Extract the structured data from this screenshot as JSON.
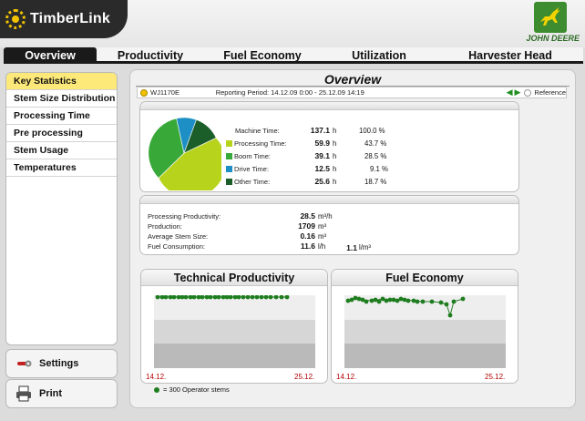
{
  "app": {
    "logo_text": "TimberLink",
    "brand": "JOHN DEERE"
  },
  "tabs": [
    "Overview",
    "Productivity",
    "Fuel Economy",
    "Utilization",
    "Harvester Head"
  ],
  "sidebar": {
    "items": [
      "Key Statistics",
      "Stem Size Distribution",
      "Processing Time",
      "Pre processing",
      "Stem Usage",
      "Temperatures"
    ],
    "settings_label": "Settings",
    "print_label": "Print"
  },
  "main": {
    "title": "Overview",
    "machine_id": "WJ1170E",
    "reporting_period": "Reporting Period: 14.12.09 0:00 - 25.12.09 14:19",
    "reference_label": "Reference"
  },
  "time_stats": [
    {
      "label": "Machine Time:",
      "value": "137.1",
      "unit": "h",
      "pct": "100.0 %",
      "color": ""
    },
    {
      "label": "Processing Time:",
      "value": "59.9",
      "unit": "h",
      "pct": "43.7 %",
      "color": "#b7d31b"
    },
    {
      "label": "Boom Time:",
      "value": "39.1",
      "unit": "h",
      "pct": "28.5 %",
      "color": "#38a838"
    },
    {
      "label": "Drive Time:",
      "value": "12.5",
      "unit": "h",
      "pct": "9.1 %",
      "color": "#1d8fc4"
    },
    {
      "label": "Other Time:",
      "value": "25.6",
      "unit": "h",
      "pct": "18.7 %",
      "color": "#1c5e2a"
    }
  ],
  "production": {
    "productivity_label": "Processing Productivity:",
    "productivity_value": "28.5",
    "productivity_unit": "m³/h",
    "production_label": "Production:",
    "production_value": "1709",
    "production_unit": "m³",
    "stem_label": "Average Stem Size:",
    "stem_value": "0.16",
    "stem_unit": "m³",
    "fuel_label": "Fuel Consumption:",
    "fuel_value": "11.6",
    "fuel_unit": "l/h",
    "fuel2_value": "1.1",
    "fuel2_unit": "l/m³"
  },
  "charts": {
    "tech_title": "Technical Productivity",
    "fuel_title": "Fuel Economy",
    "date_start": "14.12.",
    "date_end": "25.12.",
    "legend": "= 300 Operator stems"
  }
}
